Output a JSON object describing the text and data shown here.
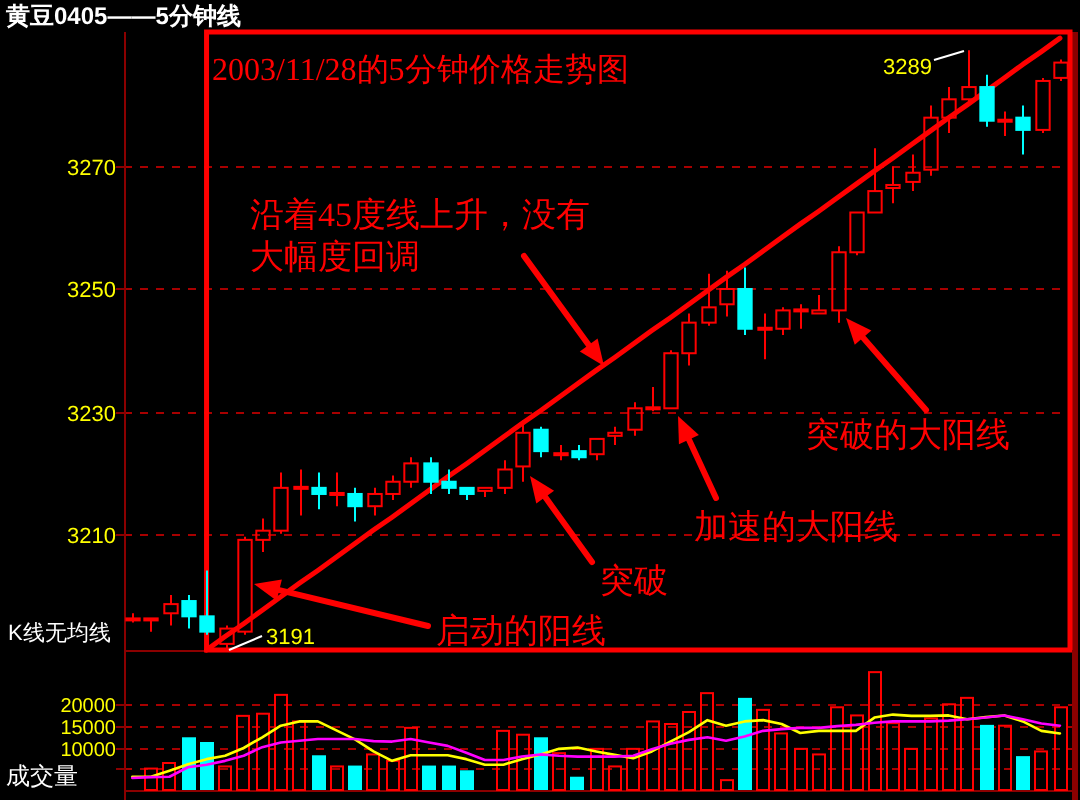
{
  "chart_data": [
    {
      "type": "candlestick",
      "title": "黄豆0405——5分钟线",
      "subtitle": "2003/11/28的5分钟价格走势图",
      "categories": [
        null,
        null,
        null,
        null,
        null,
        null,
        null,
        null,
        null,
        null,
        null,
        null,
        null,
        null,
        null,
        null,
        null,
        null,
        null,
        null,
        null,
        null,
        null,
        null,
        null,
        null,
        null,
        null,
        null,
        null,
        null,
        null,
        null,
        null,
        null,
        null,
        null,
        null,
        null,
        null,
        null,
        null,
        null,
        null,
        null,
        null,
        null,
        null,
        null,
        null,
        null
      ],
      "ohlc": [
        [
          3196,
          3197,
          3195.5,
          3196
        ],
        [
          3196,
          3196,
          3194,
          3196
        ],
        [
          3197,
          3200,
          3195,
          3198.5
        ],
        [
          3199,
          3200,
          3194.5,
          3196.5
        ],
        [
          3196.5,
          3204,
          3193.5,
          3194
        ],
        [
          3192,
          3195,
          3191,
          3194.5
        ],
        [
          3194,
          3209.5,
          3193.5,
          3209
        ],
        [
          3209,
          3212.5,
          3207,
          3210.5
        ],
        [
          3210.5,
          3220,
          3210,
          3217.5
        ],
        [
          3217.5,
          3220.5,
          3213,
          3217.5
        ],
        [
          3217.5,
          3220,
          3214,
          3216.5
        ],
        [
          3216.5,
          3220,
          3214.5,
          3216.5
        ],
        [
          3216.5,
          3217.5,
          3212,
          3214.5
        ],
        [
          3214.5,
          3217.5,
          3213,
          3216.5
        ],
        [
          3216.5,
          3219.5,
          3215.5,
          3218.5
        ],
        [
          3218.5,
          3222.5,
          3217.5,
          3221.5
        ],
        [
          3221.5,
          3222.5,
          3216.5,
          3218.5
        ],
        [
          3218.5,
          3220.5,
          3216.5,
          3217.5
        ],
        [
          3217.5,
          3217.5,
          3215.5,
          3216.5
        ],
        [
          3217,
          3217.5,
          3216,
          3217.5
        ],
        [
          3217.5,
          3222,
          3216.5,
          3220.5
        ],
        [
          3221,
          3228.5,
          3218.5,
          3226.5
        ],
        [
          3227,
          3227.5,
          3222.5,
          3223.5
        ],
        [
          3223,
          3224.5,
          3222,
          3223
        ],
        [
          3223.5,
          3224.5,
          3222,
          3222.5
        ],
        [
          3223,
          3225.5,
          3222,
          3225.5
        ],
        [
          3226,
          3227.5,
          3224.5,
          3226.5
        ],
        [
          3227,
          3231.5,
          3226,
          3230.5
        ],
        [
          3230.5,
          3234,
          3230,
          3230.5
        ],
        [
          3230.5,
          3240,
          3230.5,
          3239.5
        ],
        [
          3239.5,
          3246,
          3237.5,
          3244.5
        ],
        [
          3244.5,
          3252.5,
          3244,
          3247
        ],
        [
          3247.5,
          3253,
          3245.5,
          3250
        ],
        [
          3250,
          3253.5,
          3242.5,
          3243.5
        ],
        [
          3243.5,
          3246,
          3238.5,
          3243.5
        ],
        [
          3243.5,
          3247,
          3242.5,
          3246.5
        ],
        [
          3246.5,
          3247.5,
          3243.5,
          3246.5
        ],
        [
          3246,
          3249,
          3246,
          3246.5
        ],
        [
          3246.5,
          3257,
          3244.5,
          3256
        ],
        [
          3256,
          3262.5,
          3255.5,
          3262.5
        ],
        [
          3262.5,
          3273,
          3262.5,
          3266
        ],
        [
          3266.5,
          3270,
          3264,
          3267
        ],
        [
          3267.5,
          3272,
          3266,
          3269
        ],
        [
          3269.5,
          3280,
          3268.5,
          3278
        ],
        [
          3278,
          3283,
          3275.5,
          3281
        ],
        [
          3281,
          3289,
          3280.5,
          3283
        ],
        [
          3283,
          3285,
          3276.5,
          3277.5
        ],
        [
          3277.5,
          3279,
          3275,
          3277.5
        ],
        [
          3278,
          3280,
          3272,
          3276
        ],
        [
          3276,
          3284.5,
          3275.5,
          3284
        ],
        [
          3284.5,
          3287.5,
          3284,
          3287
        ]
      ],
      "colors": [
        "#ff0000",
        "#ff0000",
        "#ff0000",
        "#00ffff",
        "#00ffff",
        "#ff0000",
        "#ff0000",
        "#ff0000",
        "#ff0000",
        "#ff0000",
        "#00ffff",
        "#ff0000",
        "#00ffff",
        "#ff0000",
        "#ff0000",
        "#ff0000",
        "#00ffff",
        "#00ffff",
        "#00ffff",
        "#ff0000",
        "#ff0000",
        "#ff0000",
        "#00ffff",
        "#ff0000",
        "#00ffff",
        "#ff0000",
        "#ff0000",
        "#ff0000",
        "#ff0000",
        "#ff0000",
        "#ff0000",
        "#ff0000",
        "#ff0000",
        "#00ffff",
        "#ff0000",
        "#ff0000",
        "#ff0000",
        "#ff0000",
        "#ff0000",
        "#ff0000",
        "#ff0000",
        "#ff0000",
        "#ff0000",
        "#ff0000",
        "#ff0000",
        "#ff0000",
        "#00ffff",
        "#ff0000",
        "#00ffff",
        "#ff0000",
        "#ff0000"
      ],
      "series": [
        {
          "type": "line",
          "color": "#ff0000",
          "values": [
            null,
            null,
            null,
            null,
            3191.0,
            3193.2,
            3195.3,
            3197.5,
            3199.7,
            3201.9,
            3204.0,
            3206.2,
            3208.4,
            3210.6,
            3212.7,
            3214.9,
            3217.1,
            3219.3,
            3221.4,
            3223.6,
            3225.8,
            3228.0,
            3230.1,
            3232.3,
            3234.5,
            3236.7,
            3238.8,
            3241.0,
            3243.2,
            3245.3,
            3247.5,
            3249.7,
            3251.9,
            3254.0,
            3256.2,
            3258.4,
            3260.6,
            3262.7,
            3264.9,
            3267.1,
            3269.3,
            3271.4,
            3273.6,
            3275.8,
            3278.0,
            3280.1,
            3282.3,
            3284.5,
            3286.7,
            3288.8,
            3291.0
          ]
        }
      ],
      "ylim": [
        3191,
        3292
      ],
      "yticks": [
        3210,
        3230,
        3250,
        3270
      ],
      "grid": "y",
      "tick_labels": "y",
      "annotations": [
        "K线无均线",
        "3191",
        "3289",
        "沿着45度线上升，没有大幅度回调",
        "启动的阳线",
        "突破",
        "加速的大阳线",
        "突破的大阳线"
      ]
    },
    {
      "type": "bar",
      "ylabel": "成交量",
      "categories": [
        null,
        null,
        null,
        null,
        null,
        null,
        null,
        null,
        null,
        null,
        null,
        null,
        null,
        null,
        null,
        null,
        null,
        null,
        null,
        null,
        null,
        null,
        null,
        null,
        null,
        null,
        null,
        null,
        null,
        null,
        null,
        null,
        null,
        null,
        null,
        null,
        null,
        null,
        null,
        null,
        null,
        null,
        null,
        null,
        null,
        null,
        null,
        null,
        null,
        null,
        null
      ],
      "series": [
        {
          "values": [
            null,
            5000,
            6300,
            12300,
            11200,
            5500,
            17300,
            17800,
            22200,
            16000,
            8100,
            5500,
            5700,
            8300,
            6800,
            14500,
            5700,
            5700,
            4600,
            null,
            13800,
            12900,
            12300,
            8600,
            3100,
            9600,
            5500,
            9600,
            16000,
            15400,
            18200,
            22600,
            2300,
            21500,
            18700,
            13200,
            9600,
            8300,
            19300,
            17400,
            27500,
            15600,
            9600,
            16700,
            20000,
            21500,
            15200,
            15000,
            7900,
            9000,
            19300
          ],
          "colors": [
            null,
            "#ff0000",
            "#ff0000",
            "#00ffff",
            "#00ffff",
            "#ff0000",
            "#ff0000",
            "#ff0000",
            "#ff0000",
            "#ff0000",
            "#00ffff",
            "#ff0000",
            "#00ffff",
            "#ff0000",
            "#ff0000",
            "#ff0000",
            "#00ffff",
            "#00ffff",
            "#00ffff",
            null,
            "#ff0000",
            "#ff0000",
            "#00ffff",
            "#ff0000",
            "#00ffff",
            "#ff0000",
            "#ff0000",
            "#ff0000",
            "#ff0000",
            "#ff0000",
            "#ff0000",
            "#ff0000",
            "#ff0000",
            "#00ffff",
            "#ff0000",
            "#ff0000",
            "#ff0000",
            "#ff0000",
            "#ff0000",
            "#ff0000",
            "#ff0000",
            "#ff0000",
            "#ff0000",
            "#ff0000",
            "#ff0000",
            "#ff0000",
            "#00ffff",
            "#ff0000",
            "#00ffff",
            "#ff0000",
            "#ff0000"
          ]
        },
        {
          "type": "line",
          "color": "#ffff00",
          "values": [
            3100,
            3100,
            4500,
            6000,
            7200,
            8000,
            9800,
            12300,
            15000,
            16000,
            16000,
            13900,
            11800,
            9000,
            6800,
            8100,
            8100,
            8100,
            7200,
            5900,
            5900,
            7200,
            8300,
            9600,
            9900,
            9000,
            8200,
            7400,
            9000,
            11300,
            13500,
            16300,
            15000,
            16000,
            16300,
            15400,
            13300,
            13800,
            13800,
            13800,
            16900,
            17600,
            17300,
            17300,
            17400,
            16500,
            17000,
            17400,
            16000,
            13800,
            13200
          ]
        },
        {
          "type": "line",
          "color": "#ff00ff",
          "values": [
            2800,
            3000,
            3100,
            5300,
            5900,
            6800,
            8000,
            10000,
            11100,
            11500,
            11900,
            11900,
            11900,
            11400,
            11300,
            11900,
            11100,
            10300,
            8700,
            7000,
            7000,
            7800,
            8300,
            8000,
            7800,
            7800,
            7800,
            8000,
            9500,
            10800,
            11700,
            12300,
            11500,
            12500,
            13800,
            14200,
            14500,
            14500,
            14900,
            15200,
            15700,
            16000,
            16000,
            16000,
            16200,
            16500,
            16900,
            17400,
            16500,
            15500,
            15000
          ]
        }
      ],
      "ylim": [
        0,
        28000
      ],
      "yticks": [
        {
          "value": 5000,
          "label": null
        },
        10000,
        15000,
        20000
      ],
      "grid": "y",
      "tick_labels": "y"
    }
  ]
}
